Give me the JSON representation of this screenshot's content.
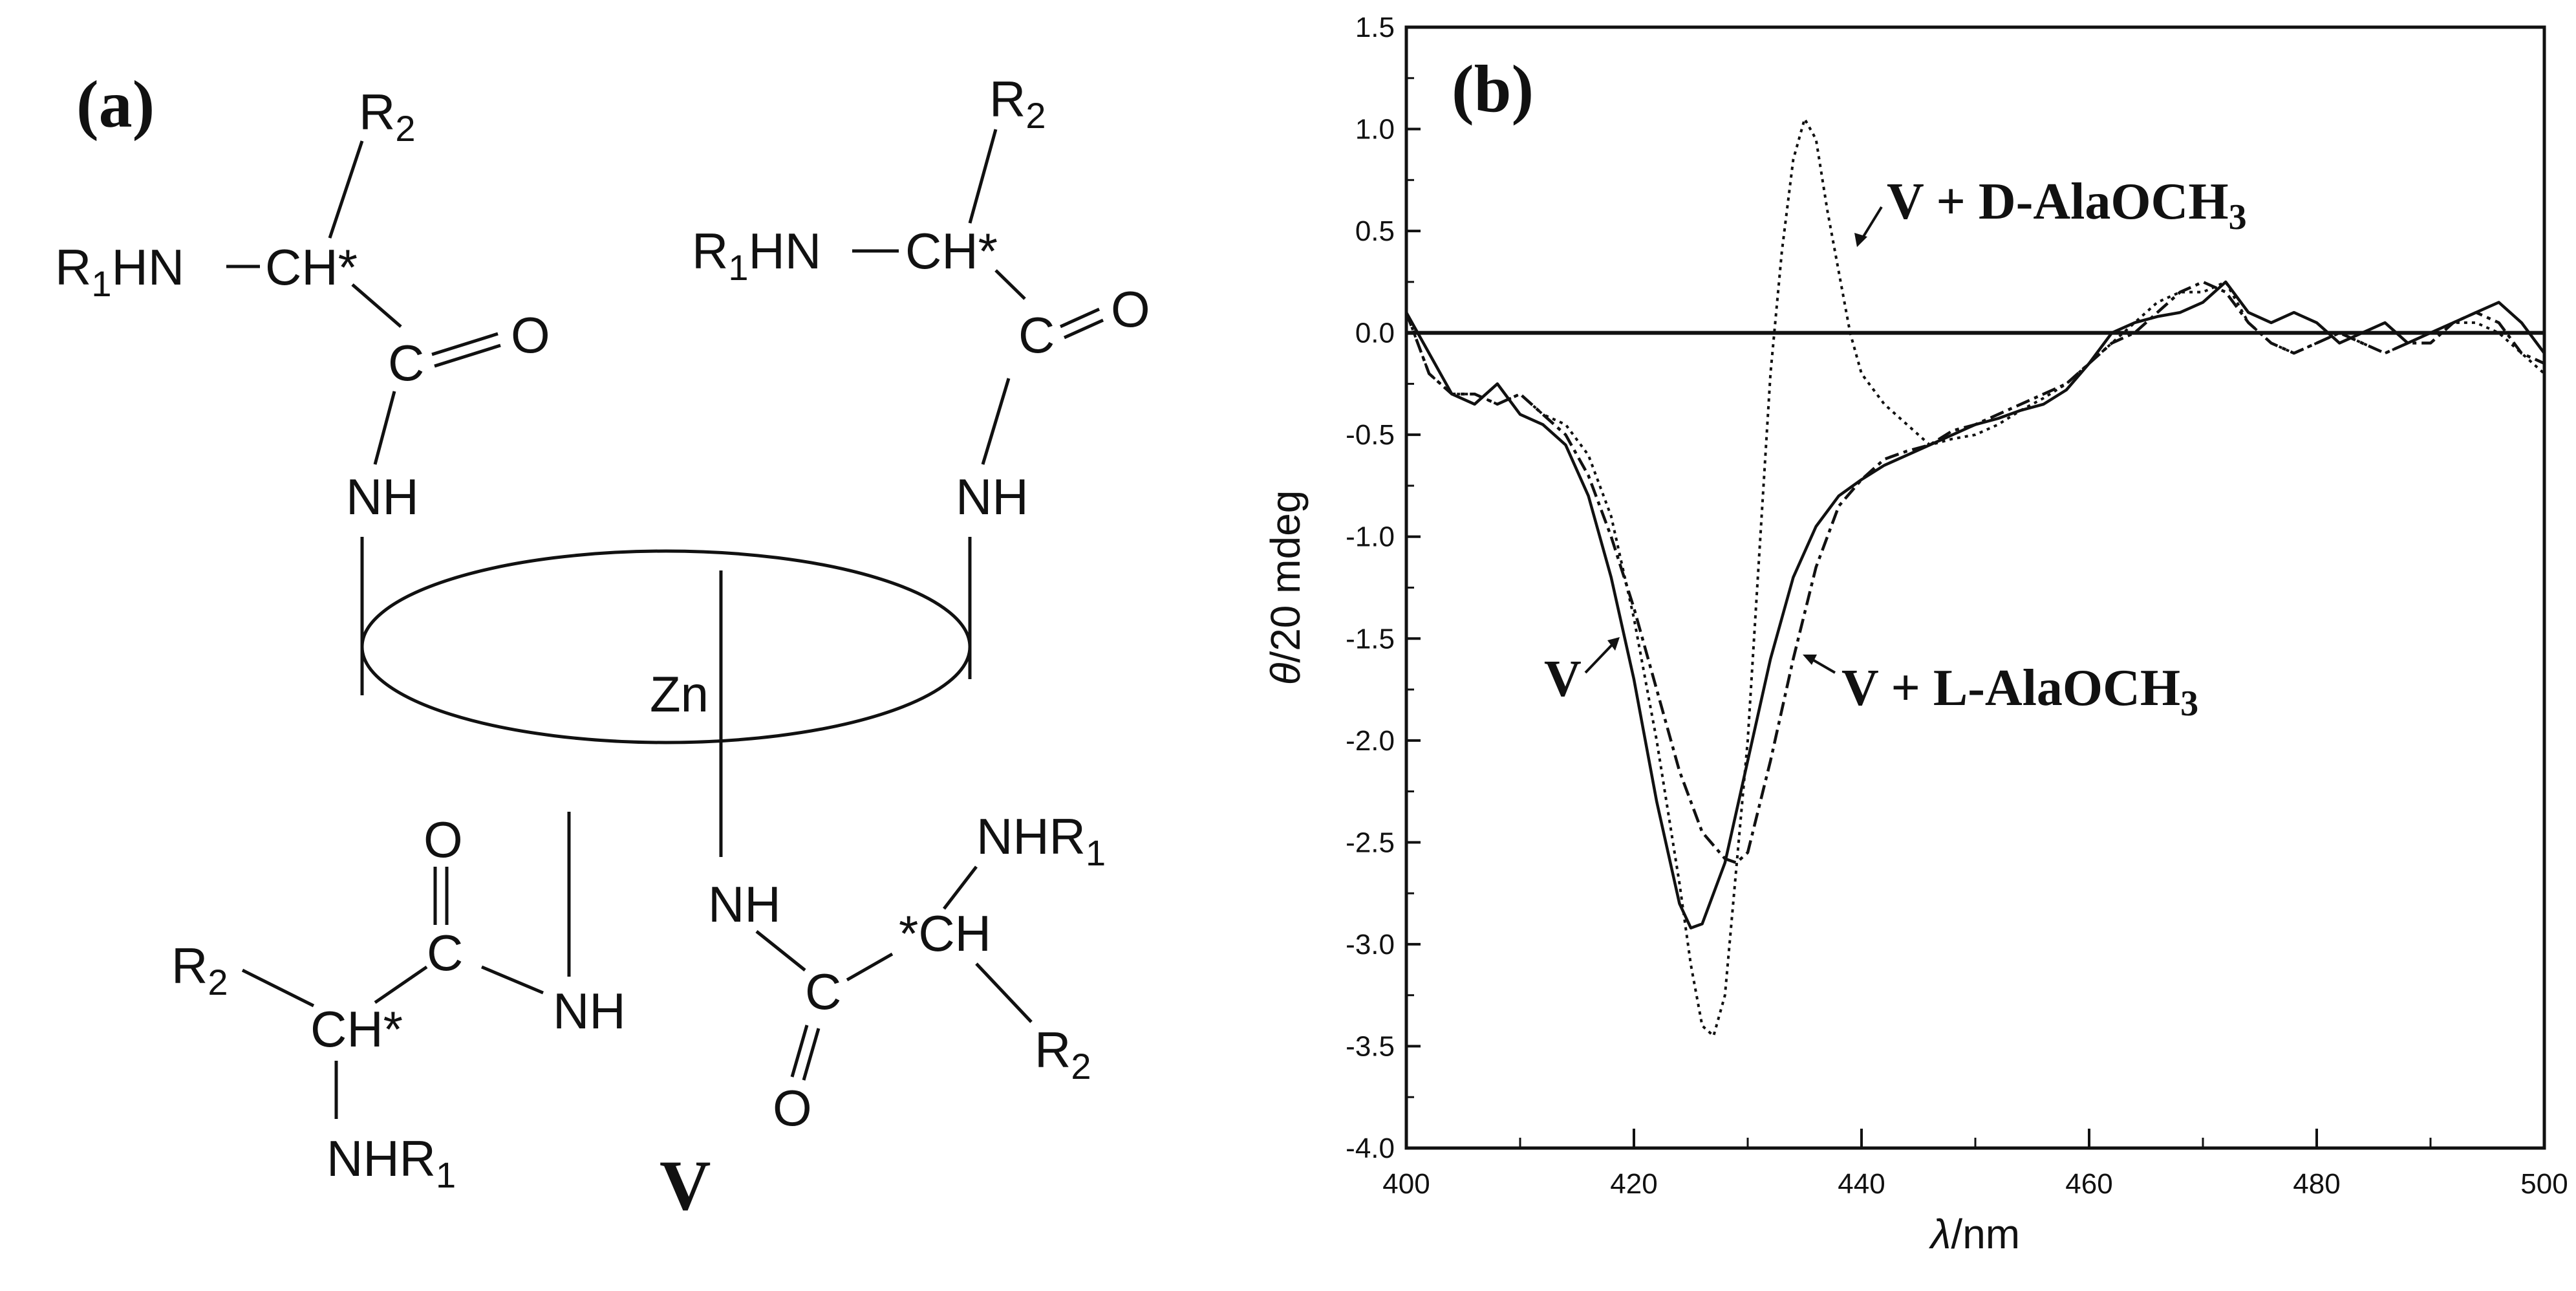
{
  "figure": {
    "panel_a": {
      "label": "(a)",
      "compound_label": "V",
      "metal_label": "Zn",
      "groups": {
        "r1hn": "R",
        "r1hn_sub": "1",
        "r1hn_rest": "HN",
        "ch_star": "CH*",
        "star_ch": "*CH",
        "c": "C",
        "o": "O",
        "nh": "NH",
        "r2": "R",
        "r2_sub": "2",
        "nhr1": "NHR",
        "nhr1_sub": "1"
      }
    },
    "panel_b": {
      "label": "(b)",
      "annotations": {
        "v": "V",
        "v_d": "V + D-AlaOCH",
        "v_d_sub": "3",
        "v_l": "V + L-AlaOCH",
        "v_l_sub": "3"
      }
    }
  },
  "chart_data": {
    "type": "line",
    "xlabel_symbol": "λ",
    "xlabel_unit": "/nm",
    "ylabel_symbol": "θ",
    "ylabel_unit": "/20 mdeg",
    "xlim": [
      400,
      500
    ],
    "ylim": [
      -4.0,
      1.5
    ],
    "xticks": [
      "400",
      "420",
      "440",
      "460",
      "480",
      "500"
    ],
    "yticks": [
      "1.5",
      "1.0",
      "0.5",
      "0.0",
      "-0.5",
      "-1.0",
      "-1.5",
      "-2.0",
      "-2.5",
      "-3.0",
      "-3.5",
      "-4.0"
    ],
    "zero_line": true,
    "series": [
      {
        "name": "V",
        "style": "solid",
        "x": [
          400,
          402,
          404,
          406,
          408,
          410,
          412,
          414,
          416,
          418,
          420,
          422,
          424,
          425,
          426,
          428,
          430,
          432,
          434,
          436,
          438,
          440,
          442,
          444,
          446,
          448,
          450,
          452,
          454,
          456,
          458,
          460,
          462,
          464,
          466,
          468,
          470,
          472,
          474,
          476,
          478,
          480,
          482,
          484,
          486,
          488,
          490,
          492,
          494,
          496,
          498,
          500
        ],
        "y": [
          0.1,
          -0.1,
          -0.3,
          -0.35,
          -0.25,
          -0.4,
          -0.45,
          -0.55,
          -0.8,
          -1.2,
          -1.7,
          -2.3,
          -2.8,
          -2.92,
          -2.9,
          -2.6,
          -2.1,
          -1.6,
          -1.2,
          -0.95,
          -0.8,
          -0.72,
          -0.65,
          -0.6,
          -0.55,
          -0.5,
          -0.45,
          -0.42,
          -0.38,
          -0.35,
          -0.28,
          -0.15,
          0.0,
          0.05,
          0.08,
          0.1,
          0.15,
          0.25,
          0.1,
          0.05,
          0.1,
          0.05,
          -0.05,
          0.0,
          0.05,
          -0.05,
          0.0,
          0.05,
          0.1,
          0.15,
          0.05,
          -0.1
        ]
      },
      {
        "name": "V + L-AlaOCH3",
        "style": "dash-dot",
        "x": [
          400,
          402,
          404,
          406,
          408,
          410,
          412,
          414,
          416,
          418,
          420,
          422,
          424,
          426,
          428,
          429,
          430,
          432,
          434,
          436,
          438,
          440,
          442,
          444,
          446,
          448,
          450,
          452,
          454,
          456,
          458,
          460,
          462,
          464,
          466,
          468,
          470,
          472,
          474,
          476,
          478,
          480,
          482,
          484,
          486,
          488,
          490,
          492,
          494,
          496,
          498,
          500
        ],
        "y": [
          0.1,
          -0.2,
          -0.3,
          -0.3,
          -0.35,
          -0.3,
          -0.4,
          -0.5,
          -0.7,
          -1.0,
          -1.35,
          -1.75,
          -2.15,
          -2.45,
          -2.58,
          -2.6,
          -2.55,
          -2.1,
          -1.6,
          -1.15,
          -0.85,
          -0.72,
          -0.62,
          -0.58,
          -0.55,
          -0.48,
          -0.45,
          -0.4,
          -0.35,
          -0.3,
          -0.25,
          -0.15,
          -0.05,
          0.0,
          0.1,
          0.2,
          0.25,
          0.2,
          0.05,
          -0.05,
          -0.1,
          -0.05,
          0.0,
          -0.05,
          -0.1,
          -0.05,
          -0.05,
          0.05,
          0.1,
          0.05,
          -0.1,
          -0.15
        ]
      },
      {
        "name": "V + D-AlaOCH3",
        "style": "dotted",
        "x": [
          400,
          402,
          404,
          406,
          408,
          410,
          412,
          414,
          416,
          418,
          420,
          422,
          424,
          425,
          426,
          427,
          428,
          430,
          432,
          433,
          434,
          435,
          436,
          437,
          438,
          439,
          440,
          442,
          444,
          446,
          448,
          450,
          452,
          454,
          456,
          458,
          460,
          462,
          464,
          466,
          468,
          470,
          472,
          474,
          476,
          478,
          480,
          482,
          484,
          486,
          488,
          490,
          492,
          494,
          496,
          498,
          500
        ],
        "y": [
          0.1,
          -0.2,
          -0.3,
          -0.3,
          -0.35,
          -0.3,
          -0.4,
          -0.45,
          -0.6,
          -0.9,
          -1.4,
          -2.0,
          -2.7,
          -3.1,
          -3.4,
          -3.45,
          -3.25,
          -2.0,
          -0.2,
          0.4,
          0.85,
          1.05,
          0.95,
          0.6,
          0.3,
          0.0,
          -0.2,
          -0.35,
          -0.45,
          -0.55,
          -0.52,
          -0.5,
          -0.45,
          -0.38,
          -0.32,
          -0.25,
          -0.15,
          -0.05,
          0.05,
          0.15,
          0.2,
          0.2,
          0.25,
          0.05,
          -0.05,
          -0.1,
          -0.05,
          0.0,
          -0.05,
          -0.1,
          -0.05,
          0.0,
          0.05,
          0.05,
          0.0,
          -0.1,
          -0.2
        ]
      }
    ]
  }
}
